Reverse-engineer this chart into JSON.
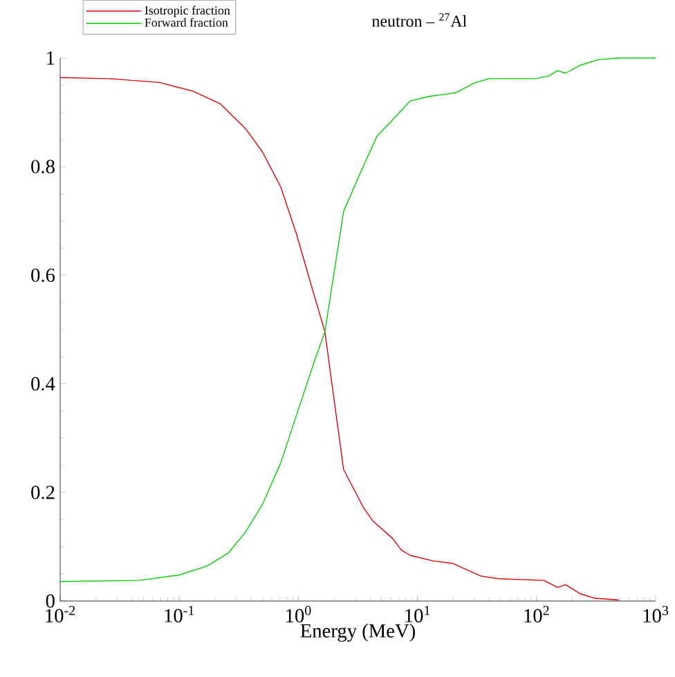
{
  "chart_data": {
    "type": "line",
    "title": "neutron – $^{27}$Al",
    "xlabel": "Energy (MeV)",
    "log": "x",
    "legend": "top left",
    "marker": "none",
    "line_style": "solid",
    "grid": false,
    "xlim": [
      0.01,
      1000
    ],
    "ylim": [
      0,
      1
    ],
    "xticks": [
      {
        "value": 0.01,
        "label": "10$^{-2}$"
      },
      {
        "value": 0.1,
        "label": "10$^{-1}$"
      },
      {
        "value": 1,
        "label": "10$^{0}$"
      },
      {
        "value": 10,
        "label": "10$^{1}$"
      },
      {
        "value": 100,
        "label": "10$^{2}$"
      },
      {
        "value": 1000,
        "label": "10$^{3}$"
      }
    ],
    "yticks": [
      0,
      0.2,
      0.4,
      0.6,
      0.8,
      1
    ],
    "series": [
      {
        "name": "Isotropic fraction",
        "color": "#e00000",
        "x": [
          0.01,
          0.026,
          0.068,
          0.13,
          0.22,
          0.36,
          0.5,
          0.71,
          0.97,
          1.27,
          1.67,
          2.0,
          2.4,
          3.5,
          4.2,
          6.2,
          7.3,
          8.7,
          13.5,
          20,
          34,
          48,
          115,
          150,
          175,
          235,
          310,
          490
        ],
        "values": [
          0.964,
          0.962,
          0.955,
          0.939,
          0.916,
          0.87,
          0.827,
          0.763,
          0.674,
          0.585,
          0.496,
          0.369,
          0.242,
          0.173,
          0.148,
          0.115,
          0.094,
          0.084,
          0.074,
          0.069,
          0.046,
          0.041,
          0.038,
          0.025,
          0.03,
          0.013,
          0.005,
          0.002
        ]
      },
      {
        "name": "Forward fraction",
        "color": "#00d000",
        "x": [
          0.01,
          0.046,
          0.1,
          0.17,
          0.26,
          0.36,
          0.5,
          0.71,
          0.97,
          1.38,
          1.67,
          2.4,
          3.5,
          4.6,
          6.0,
          8.7,
          12.3,
          18,
          21,
          30,
          40,
          98,
          127,
          150,
          175,
          235,
          330,
          490,
          1000
        ],
        "values": [
          0.036,
          0.038,
          0.048,
          0.064,
          0.089,
          0.127,
          0.178,
          0.254,
          0.344,
          0.445,
          0.496,
          0.718,
          0.8,
          0.857,
          0.883,
          0.921,
          0.929,
          0.934,
          0.936,
          0.954,
          0.962,
          0.962,
          0.967,
          0.977,
          0.972,
          0.987,
          0.997,
          1.0,
          1.0
        ]
      }
    ]
  }
}
